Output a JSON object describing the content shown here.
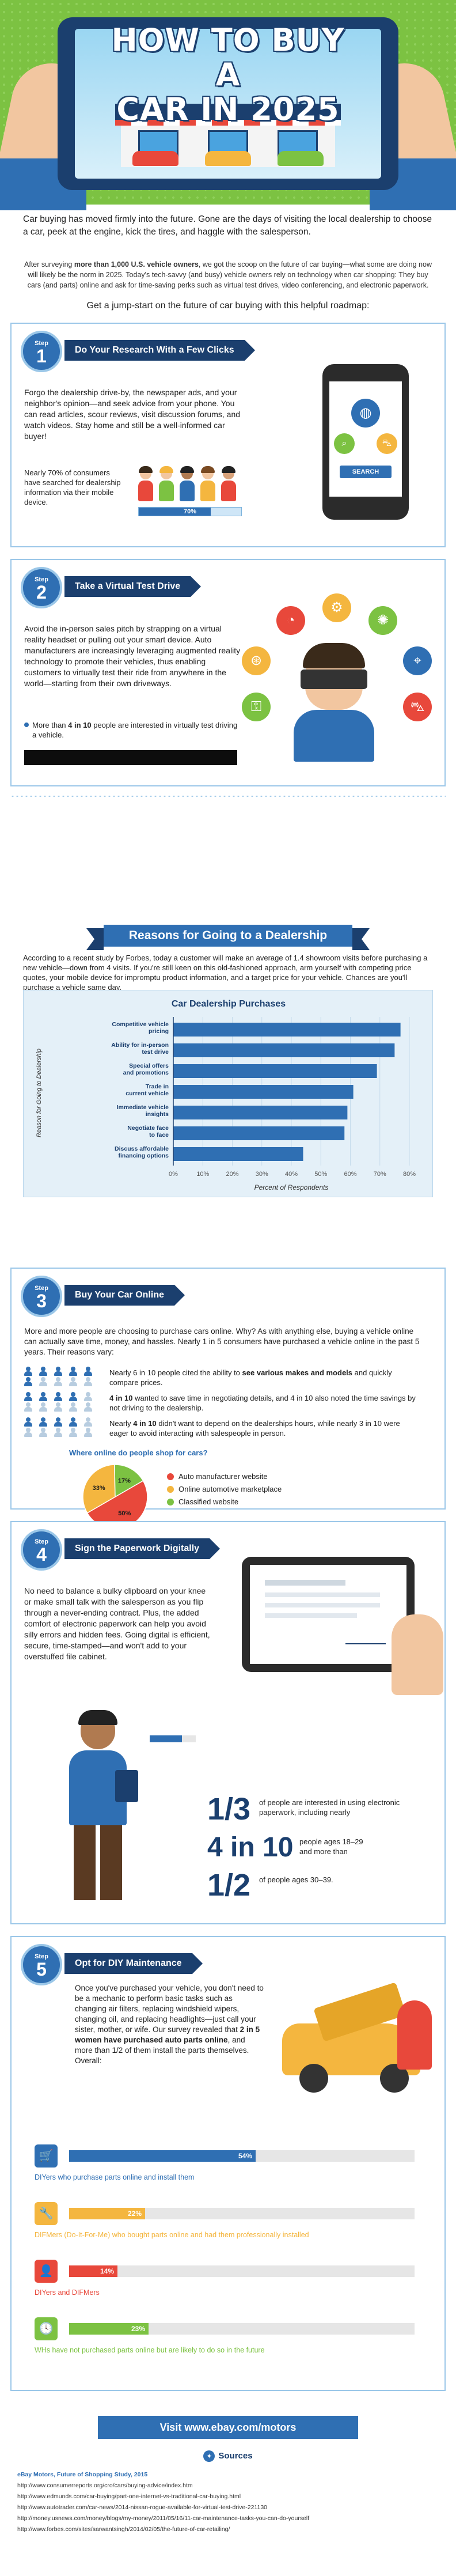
{
  "header": {
    "title_line1": "How to Buy a",
    "title_line2": "Car in 2025"
  },
  "intro": {
    "lead": "Car buying has moved firmly into the future. Gone are the days of visiting the local dealership to choose a car, peek at the engine, kick the tires, and haggle with the salesperson.",
    "survey_pre": "After surveying ",
    "survey_bold": "more than 1,000 U.S. vehicle owners",
    "survey_post": ", we got the scoop on the future of car buying—what some are doing now will likely be the norm in 2025. Today's tech-savvy (and busy) vehicle owners rely on technology when car shopping: They buy cars (and parts) online and ask for time-saving perks such as virtual test drives, video conferencing, and electronic paperwork.",
    "roadmap": "Get a jump-start on the future of car buying with this helpful roadmap:"
  },
  "step1": {
    "step_label": "Step",
    "number": "1",
    "heading": "Do Your Research With a Few Clicks",
    "body": "Forgo the dealership drive-by, the newspaper ads, and your neighbor's opinion—and seek advice from your phone. You can read articles, scour reviews, visit discussion forums, and watch videos. Stay home and still be a well-informed car buyer!",
    "stat_text": "Nearly 70% of consumers have searched for dealership information via their mobile device.",
    "stat_value": 70,
    "stat_label": "70%",
    "phone_button": "SEARCH"
  },
  "step2": {
    "step_label": "Step",
    "number": "2",
    "heading": "Take a Virtual Test Drive",
    "body": "Avoid the in-person sales pitch by strapping on a virtual reality headset or pulling out your smart device. Auto manufacturers are increasingly leveraging augmented reality technology to promote their vehicles, thus enabling customers to virtually test their ride from anywhere in the world—starting from their own driveways.",
    "stat_pre": "More than ",
    "stat_bold": "4 in 10",
    "stat_post": " people are interested in virtually test driving a vehicle."
  },
  "dealership": {
    "ribbon": "Reasons for Going to a Dealership",
    "body": "According to a recent study by Forbes, today a customer will make an average of 1.4 showroom visits before purchasing a new vehicle—down from 4 visits. If you're still keen on this old-fashioned approach, arm yourself with competing price quotes, your mobile device for impromptu product information, and a target price for your vehicle. Chances are you'll purchase a vehicle same day."
  },
  "chart_data": {
    "type": "bar",
    "orientation": "horizontal",
    "title": "Car Dealership Purchases",
    "xlabel": "Percent of Respondents",
    "ylabel": "Reason for Going to Dealership",
    "categories": [
      "Competitive vehicle pricing",
      "Ability for in-person test drive",
      "Special offers and promotions",
      "Trade in current vehicle",
      "Immediate vehicle insights",
      "Negotiate face to face",
      "Discuss affordable financing options"
    ],
    "values": [
      77,
      75,
      69,
      61,
      59,
      58,
      44
    ],
    "xticks": [
      "0%",
      "10%",
      "20%",
      "30%",
      "40%",
      "50%",
      "60%",
      "70%",
      "80%"
    ],
    "xlim": [
      0,
      80
    ],
    "bar_color": "#2f6fb3"
  },
  "step3": {
    "step_label": "Step",
    "number": "3",
    "heading": "Buy Your Car Online",
    "body": "More and more people are choosing to purchase cars online. Why? As with anything else, buying a vehicle online can actually save time, money, and hassles. Nearly 1 in 5 consumers have purchased a vehicle online in the past 5 years. Their reasons vary:",
    "reasons": [
      {
        "pre": "Nearly 6 in 10 people cited the ability to ",
        "bold": "see various makes and models",
        "post": " and quickly compare prices.",
        "count": 6
      },
      {
        "pre": "",
        "bold": "4 in 10",
        "post": " wanted to save time in negotiating details, and 4 in 10 also noted the time savings by not driving to the dealership.",
        "count": 4
      },
      {
        "pre": "Nearly ",
        "bold": "4 in 10",
        "post": " didn't want to depend on the dealerships hours, while nearly 3 in 10 were eager to avoid interacting with salespeople in person.",
        "count": 4
      }
    ],
    "pie_title": "Where online do people shop for cars?",
    "pie": [
      {
        "name": "Auto manufacturer website",
        "value": 50,
        "label": "50%",
        "color": "#e8483b"
      },
      {
        "name": "Online automotive marketplace",
        "value": 33,
        "label": "33%",
        "color": "#f4b63f"
      },
      {
        "name": "Classified website",
        "value": 17,
        "label": "17%",
        "color": "#7cc242"
      }
    ]
  },
  "step4": {
    "step_label": "Step",
    "number": "4",
    "heading": "Sign the Paperwork Digitally",
    "body": "No need to balance a bulky clipboard on your knee or make small talk with the salesperson as you flip through a never-ending contract. Plus, the added comfort of electronic paperwork can help you avoid silly errors and hidden fees. Going digital is efficient, secure, time-stamped—and won't add to your overstuffed file cabinet.",
    "stats": [
      {
        "big": "1/3",
        "text": "of people are interested in using electronic paperwork, including nearly"
      },
      {
        "big": "4 in 10",
        "text": "people ages 18–29 and more than"
      },
      {
        "big": "1/2",
        "text": "of people ages 30–39."
      }
    ]
  },
  "step5": {
    "step_label": "Step",
    "number": "5",
    "heading": "Opt for DIY Maintenance",
    "body_pre": "Once you've purchased your vehicle, you don't need to be a mechanic to perform basic tasks such as changing air filters, replacing windshield wipers, changing oil, and replacing headlights—just call your sister, mother, or wife. Our survey revealed that ",
    "body_bold": "2 in 5 women have purchased auto parts online",
    "body_post": ", and more than 1/2 of them install the parts themselves. Overall:",
    "bars": [
      {
        "value": 54,
        "label": "54%",
        "caption": "DIYers who purchase parts online and install them",
        "color": "#2f6fb3",
        "icon": "cart-icon",
        "glyph": "🛒"
      },
      {
        "value": 22,
        "label": "22%",
        "caption": "DIFMers (Do-It-For-Me) who bought parts online and had them professionally installed",
        "color": "#f4b63f",
        "icon": "wrench-icon",
        "glyph": "🔧"
      },
      {
        "value": 14,
        "label": "14%",
        "caption": "DIYers and DIFMers",
        "color": "#e8483b",
        "icon": "person-icon",
        "glyph": "👤"
      },
      {
        "value": 23,
        "label": "23%",
        "caption": "WHs have not purchased parts online but are likely to do so in the future",
        "color": "#7cc242",
        "icon": "clock-icon",
        "glyph": "🕓"
      }
    ]
  },
  "footer": {
    "visit": "Visit www.ebay.com/motors",
    "sources_title": "Sources",
    "sources": [
      "eBay Motors, Future of Shopping Study, 2015",
      "http://www.consumerreports.org/cro/cars/buying-advice/index.htm",
      "http://www.edmunds.com/car-buying/part-one-internet-vs-traditional-car-buying.html",
      "http://www.autotrader.com/car-news/2014-nissan-rogue-available-for-virtual-test-drive-221130",
      "http://money.usnews.com/money/blogs/my-money/2011/05/16/11-car-maintenance-tasks-you-can-do-yourself",
      "http://www.forbes.com/sites/sarwantsingh/2014/02/05/the-future-of-car-retailing/"
    ]
  }
}
